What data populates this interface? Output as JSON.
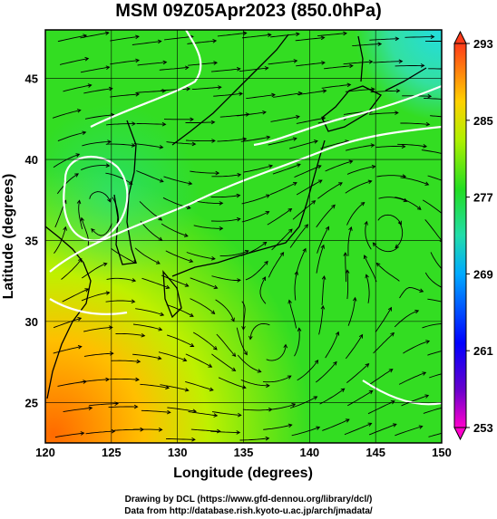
{
  "title": "MSM 09Z05Apr2023 (850.0hPa)",
  "xlabel": "Longitude (degrees)",
  "ylabel": "Latitude  (degrees)",
  "x_ticks": [
    "120",
    "125",
    "130",
    "135",
    "140",
    "145",
    "150"
  ],
  "y_ticks": [
    "25",
    "30",
    "35",
    "40",
    "45"
  ],
  "colorbar_ticks": [
    "293",
    "285",
    "277",
    "269",
    "261",
    "253"
  ],
  "footer_line1": "Drawing by DCL (https://www.gfd-dennou.org/library/dcl/)",
  "footer_line2": "Data from http://database.rish.kyoto-u.ac.jp/arch/jmadata/",
  "map": {
    "lon_range": [
      120,
      150
    ],
    "lat_range": [
      22.5,
      48
    ],
    "field": "temperature (K) shaded with wind streamlines",
    "colorbar_range": [
      253,
      293
    ],
    "colors": {
      "warm": "#ff6a00",
      "mid": "#33dd22",
      "cool": "#22ccaa",
      "cold_end": "#ff00cc",
      "hot_end": "#ff3b1a"
    }
  }
}
